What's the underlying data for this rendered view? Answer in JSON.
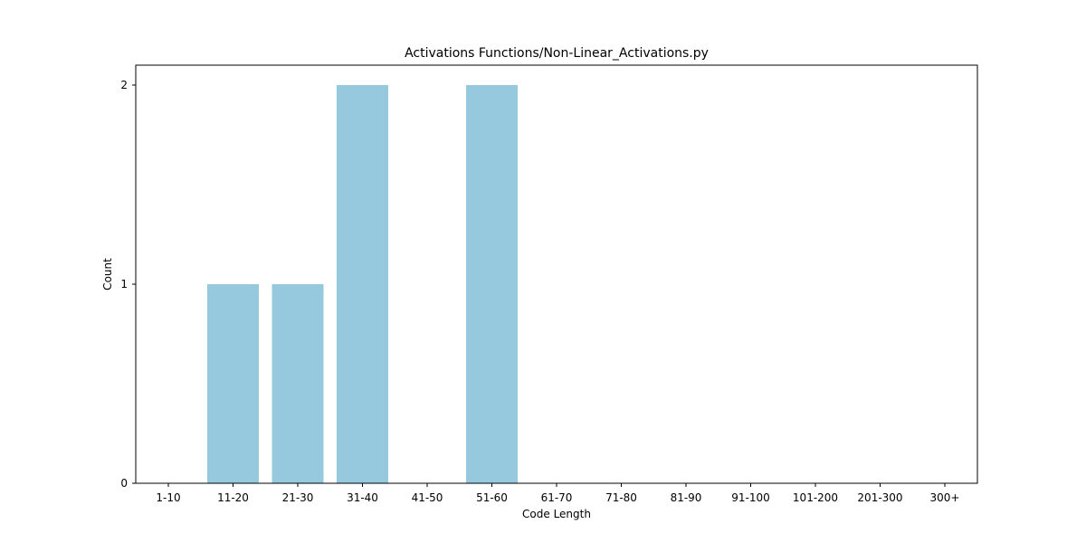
{
  "chart_data": {
    "type": "bar",
    "title": "Activations Functions/Non-Linear_Activations.py",
    "xlabel": "Code Length",
    "ylabel": "Count",
    "categories": [
      "1-10",
      "11-20",
      "21-30",
      "31-40",
      "41-50",
      "51-60",
      "61-70",
      "71-80",
      "81-90",
      "91-100",
      "101-200",
      "201-300",
      "300+"
    ],
    "values": [
      0,
      1,
      1,
      2,
      0,
      2,
      0,
      0,
      0,
      0,
      0,
      0,
      0
    ],
    "ylim": [
      0,
      2.1
    ],
    "yticks": [
      0,
      1,
      2
    ],
    "bar_color": "#96c9de",
    "grid": false
  }
}
